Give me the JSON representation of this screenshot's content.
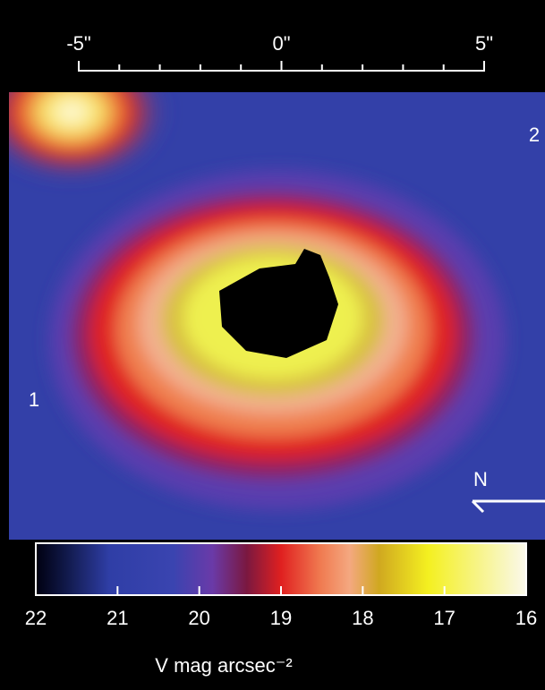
{
  "chart_data": {
    "type": "image",
    "xlim": [
      -5,
      5
    ],
    "xticks": [
      {
        "value": -5,
        "label": "-5\""
      },
      {
        "value": 0,
        "label": "0\""
      },
      {
        "value": 5,
        "label": "5\""
      }
    ],
    "x_minor_ticks": [
      -4,
      -3,
      -2,
      -1,
      1,
      2,
      3,
      4
    ],
    "colorbar": {
      "lim": [
        22,
        16
      ],
      "ticks": [
        22,
        21,
        20,
        19,
        18,
        17,
        16
      ],
      "label": "V mag arcsec⁻²"
    },
    "annotations": [
      "1",
      "2"
    ],
    "compass": "N"
  }
}
